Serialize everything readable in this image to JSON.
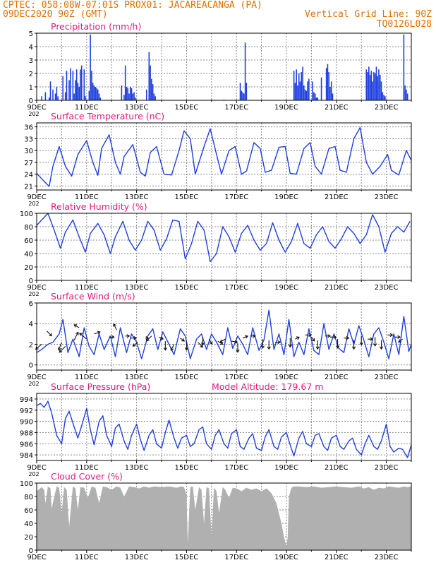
{
  "header": {
    "line1_left": "CPTEC:   058:08W-07:01S   PROX01: JACAREACANGA (PA)",
    "line2_left": "09DEC2020 90Z (GMT)",
    "line2_right": "Vertical Grid Line: 90Z",
    "line3_right": "TQ0126L028"
  },
  "colors": {
    "header": "#e07000",
    "title": "#e0197d",
    "series": "#1f3fe0",
    "cloud": "#b0b0b0",
    "grid": "#8a8a8a"
  },
  "x_axis": {
    "labels": [
      "9DEC",
      "11DEC",
      "13DEC",
      "15DEC",
      "17DEC",
      "19DEC",
      "21DEC",
      "23DEC"
    ],
    "label_days": [
      0,
      2,
      4,
      6,
      8,
      10,
      12,
      14
    ],
    "total_days": 15,
    "year_fragment": "202"
  },
  "chart_data": [
    {
      "type": "bar",
      "title": "Precipitation  (mm/h)",
      "ylim": [
        0,
        5
      ],
      "yticks": [
        0,
        1,
        2,
        3,
        4,
        5
      ],
      "x_days": [
        0.2,
        0.35,
        0.5,
        0.55,
        0.65,
        0.75,
        0.8,
        0.85,
        1.05,
        1.15,
        1.2,
        1.3,
        1.35,
        1.45,
        1.5,
        1.55,
        1.6,
        1.65,
        1.7,
        1.75,
        1.8,
        1.9,
        1.95,
        2.1,
        2.15,
        2.2,
        2.25,
        2.3,
        2.35,
        2.4,
        2.45,
        2.5,
        2.55,
        3.4,
        3.5,
        3.55,
        3.6,
        3.65,
        3.7,
        3.75,
        3.8,
        3.85,
        3.9,
        3.95,
        4.4,
        4.5,
        4.55,
        4.6,
        4.65,
        4.7,
        4.75,
        7.0,
        7.5,
        8.15,
        8.2,
        8.25,
        8.3,
        8.35,
        8.4,
        10.3,
        10.35,
        10.4,
        10.45,
        10.5,
        10.55,
        10.6,
        10.65,
        10.7,
        10.75,
        10.8,
        10.85,
        10.9,
        11.05,
        11.1,
        11.15,
        11.2,
        11.25,
        11.4,
        11.6,
        11.65,
        11.7,
        11.75,
        11.8,
        11.85,
        13.2,
        13.25,
        13.3,
        13.35,
        13.4,
        13.45,
        13.5,
        13.55,
        13.6,
        13.65,
        13.7,
        13.75,
        13.8,
        13.85,
        13.9,
        13.95,
        14.7,
        14.75,
        14.8,
        14.85
      ],
      "values": [
        0.3,
        0.6,
        0.2,
        1.4,
        0.8,
        0.5,
        1.0,
        0.3,
        1.8,
        0.6,
        2.2,
        1.5,
        2.4,
        2.2,
        0.5,
        1.5,
        2.3,
        1.3,
        1.0,
        2.3,
        2.6,
        2.3,
        0.3,
        0.7,
        4.9,
        2.2,
        1.3,
        1.1,
        1.0,
        0.9,
        0.8,
        0.5,
        0.2,
        1.1,
        0.4,
        2.6,
        1.0,
        0.9,
        0.5,
        1.0,
        0.9,
        0.5,
        0.6,
        0.2,
        0.8,
        3.6,
        2.6,
        1.6,
        1.2,
        0.5,
        0.3,
        0.05,
        0.05,
        1.3,
        0.7,
        0.6,
        0.5,
        4.3,
        1.3,
        2.2,
        1.3,
        2.3,
        1.1,
        2.0,
        1.4,
        2.1,
        2.5,
        1.1,
        0.8,
        0.7,
        1.4,
        1.6,
        1.4,
        0.6,
        0.5,
        0.2,
        0.2,
        1.7,
        2.4,
        2.7,
        2.1,
        1.0,
        1.4,
        0.5,
        2.3,
        2.1,
        2.5,
        1.9,
        2.2,
        1.4,
        2.1,
        2.0,
        2.5,
        1.8,
        2.3,
        1.9,
        1.4,
        0.6,
        0.4,
        0.3,
        4.9,
        1.1,
        0.8,
        0.5
      ]
    },
    {
      "type": "line",
      "title": "Surface Temperature  (nC)",
      "ylim": [
        20,
        37
      ],
      "yticks": [
        21,
        24,
        27,
        30,
        33,
        36
      ],
      "x_days": [
        0,
        0.25,
        0.5,
        0.65,
        0.9,
        1.15,
        1.4,
        1.65,
        2.0,
        2.25,
        2.45,
        2.6,
        2.9,
        3.15,
        3.35,
        3.5,
        3.85,
        4.15,
        4.35,
        4.55,
        4.8,
        5.1,
        5.4,
        5.7,
        5.9,
        6.15,
        6.35,
        6.7,
        6.95,
        7.2,
        7.4,
        7.7,
        7.95,
        8.2,
        8.4,
        8.7,
        8.95,
        9.15,
        9.4,
        9.7,
        9.95,
        10.15,
        10.4,
        10.7,
        10.95,
        11.15,
        11.4,
        11.7,
        11.95,
        12.15,
        12.4,
        12.7,
        12.95,
        13.2,
        13.45,
        13.75,
        14.05,
        14.2,
        14.5,
        14.8,
        15.0
      ],
      "values": [
        24.2,
        22.5,
        20.9,
        26.0,
        31.0,
        26.0,
        23.5,
        29.0,
        32.5,
        27.0,
        23.7,
        30.5,
        34.0,
        27.0,
        24.0,
        28.5,
        31.5,
        24.5,
        23.5,
        29.5,
        31.0,
        24.0,
        23.8,
        30.0,
        35.0,
        33.0,
        24.0,
        31.0,
        35.5,
        29.0,
        24.0,
        30.0,
        31.0,
        24.0,
        24.8,
        32.0,
        30.5,
        24.5,
        25.0,
        30.8,
        31.0,
        24.2,
        24.0,
        30.5,
        32.0,
        26.0,
        24.0,
        30.5,
        31.0,
        25.0,
        24.5,
        33.0,
        35.8,
        27.0,
        24.0,
        26.0,
        29.0,
        25.0,
        23.8,
        30.0,
        27.5
      ]
    },
    {
      "type": "line",
      "title": "Relative Humidity  (%)",
      "ylim": [
        0,
        100
      ],
      "yticks": [
        0,
        20,
        40,
        60,
        80,
        100
      ],
      "x_days": [
        0,
        0.2,
        0.45,
        0.7,
        0.95,
        1.15,
        1.45,
        1.7,
        1.95,
        2.15,
        2.45,
        2.7,
        2.95,
        3.15,
        3.45,
        3.7,
        3.95,
        4.2,
        4.45,
        4.7,
        4.95,
        5.2,
        5.45,
        5.7,
        5.95,
        6.2,
        6.45,
        6.7,
        6.95,
        7.2,
        7.45,
        7.7,
        7.95,
        8.2,
        8.45,
        8.7,
        8.95,
        9.2,
        9.45,
        9.7,
        9.95,
        10.2,
        10.45,
        10.7,
        10.95,
        11.2,
        11.45,
        11.7,
        11.95,
        12.2,
        12.45,
        12.7,
        12.95,
        13.2,
        13.45,
        13.7,
        13.95,
        14.2,
        14.45,
        14.7,
        14.95
      ],
      "values": [
        82,
        90,
        100,
        75,
        48,
        72,
        90,
        65,
        42,
        70,
        85,
        68,
        40,
        65,
        88,
        60,
        45,
        60,
        88,
        75,
        45,
        62,
        90,
        88,
        32,
        55,
        88,
        75,
        28,
        40,
        80,
        65,
        42,
        70,
        82,
        60,
        45,
        55,
        86,
        60,
        42,
        58,
        85,
        55,
        48,
        68,
        80,
        58,
        48,
        62,
        80,
        70,
        55,
        68,
        98,
        80,
        42,
        70,
        80,
        72,
        88
      ]
    },
    {
      "type": "line",
      "title": "Surface Wind  (m/s)",
      "ylim": [
        -0.5,
        6
      ],
      "yticks": [
        0,
        2,
        4,
        6
      ],
      "x_days": [
        0,
        0.2,
        0.45,
        0.65,
        0.9,
        1.05,
        1.25,
        1.45,
        1.7,
        1.9,
        2.1,
        2.3,
        2.5,
        2.7,
        2.95,
        3.15,
        3.35,
        3.6,
        3.8,
        4.0,
        4.2,
        4.45,
        4.65,
        4.85,
        5.05,
        5.3,
        5.5,
        5.75,
        5.95,
        6.15,
        6.4,
        6.6,
        6.8,
        7.0,
        7.2,
        7.45,
        7.65,
        7.85,
        8.05,
        8.25,
        8.45,
        8.65,
        8.9,
        9.1,
        9.3,
        9.5,
        9.7,
        9.9,
        10.1,
        10.3,
        10.5,
        10.7,
        10.9,
        11.1,
        11.3,
        11.5,
        11.7,
        11.9,
        12.1,
        12.3,
        12.5,
        12.7,
        12.9,
        13.1,
        13.3,
        13.5,
        13.7,
        13.9,
        14.1,
        14.3,
        14.5,
        14.7,
        14.9,
        15.0
      ],
      "values": [
        1.2,
        1.5,
        2.0,
        2.2,
        3.0,
        4.4,
        1.2,
        2.5,
        0.8,
        3.6,
        1.8,
        1.0,
        3.0,
        1.5,
        2.8,
        0.8,
        3.6,
        1.2,
        3.0,
        2.2,
        0.6,
        2.8,
        3.5,
        1.5,
        3.2,
        2.0,
        1.0,
        3.5,
        2.8,
        0.6,
        2.5,
        3.0,
        1.5,
        3.0,
        2.2,
        1.0,
        3.6,
        1.6,
        2.8,
        2.0,
        1.0,
        3.6,
        1.4,
        2.4,
        5.3,
        1.5,
        3.0,
        1.0,
        4.4,
        0.8,
        2.2,
        1.0,
        3.5,
        1.4,
        1.0,
        4.0,
        1.5,
        3.0,
        1.6,
        1.2,
        3.5,
        2.0,
        3.8,
        2.4,
        0.8,
        3.0,
        3.6,
        2.2,
        0.6,
        3.0,
        1.0,
        4.7,
        1.3,
        2.0
      ]
    },
    {
      "type": "line",
      "title": "Surface Pressure  (hPa)",
      "annotation": "Model Altitude: 179.67  m",
      "ylim": [
        983,
        995
      ],
      "yticks": [
        984,
        986,
        988,
        990,
        992,
        994
      ],
      "x_days": [
        0,
        0.15,
        0.3,
        0.45,
        0.6,
        0.8,
        1.0,
        1.15,
        1.3,
        1.5,
        1.65,
        1.8,
        2.0,
        2.15,
        2.3,
        2.5,
        2.65,
        2.8,
        3.0,
        3.15,
        3.3,
        3.5,
        3.65,
        3.8,
        4.0,
        4.15,
        4.3,
        4.5,
        4.65,
        4.8,
        5.0,
        5.15,
        5.3,
        5.5,
        5.65,
        5.8,
        6.0,
        6.15,
        6.3,
        6.5,
        6.65,
        6.8,
        7.0,
        7.15,
        7.3,
        7.5,
        7.65,
        7.8,
        8.0,
        8.15,
        8.3,
        8.5,
        8.65,
        8.8,
        9.0,
        9.15,
        9.3,
        9.5,
        9.65,
        9.8,
        10.0,
        10.15,
        10.3,
        10.5,
        10.65,
        10.8,
        11.0,
        11.15,
        11.3,
        11.5,
        11.65,
        11.8,
        12.0,
        12.15,
        12.3,
        12.5,
        12.65,
        12.8,
        13.0,
        13.15,
        13.3,
        13.5,
        13.65,
        13.8,
        14.0,
        14.15,
        14.3,
        14.5,
        14.65,
        14.85,
        15.0
      ],
      "values": [
        992.8,
        993.2,
        992.5,
        993.6,
        991.5,
        987.5,
        986.0,
        990.5,
        991.8,
        989.0,
        987.0,
        989.2,
        992.3,
        988.5,
        985.8,
        990.0,
        991.0,
        987.5,
        985.5,
        988.8,
        989.5,
        986.5,
        985.0,
        987.5,
        989.5,
        986.8,
        984.8,
        987.5,
        988.5,
        986.0,
        985.2,
        988.0,
        990.2,
        987.0,
        985.2,
        987.0,
        987.5,
        985.5,
        986.0,
        988.5,
        989.0,
        986.0,
        985.0,
        987.5,
        988.5,
        986.0,
        985.2,
        987.8,
        988.5,
        985.5,
        985.0,
        987.0,
        987.8,
        985.2,
        984.8,
        987.2,
        988.5,
        985.5,
        985.0,
        987.2,
        988.0,
        985.8,
        983.8,
        987.0,
        988.2,
        986.0,
        985.5,
        987.5,
        987.8,
        985.5,
        984.8,
        987.0,
        987.5,
        985.5,
        985.0,
        986.5,
        987.0,
        985.0,
        984.0,
        986.0,
        987.5,
        985.5,
        985.0,
        986.5,
        989.5,
        985.5,
        984.5,
        985.2,
        985.0,
        983.5,
        985.8
      ]
    },
    {
      "type": "area",
      "title": "Cloud Cover  (%)",
      "ylim": [
        0,
        100
      ],
      "yticks": [
        0,
        20,
        40,
        60,
        80,
        100
      ],
      "x_days": [
        0,
        0.2,
        0.3,
        0.35,
        0.45,
        0.55,
        0.6,
        0.8,
        0.9,
        1.0,
        1.1,
        1.2,
        1.3,
        1.45,
        1.55,
        1.65,
        1.75,
        1.9,
        2.05,
        2.2,
        2.35,
        2.5,
        2.65,
        2.8,
        3.0,
        3.2,
        3.35,
        3.5,
        3.7,
        3.9,
        4.1,
        4.3,
        4.5,
        4.7,
        5.0,
        5.3,
        5.6,
        5.8,
        5.9,
        6.0,
        6.05,
        6.15,
        6.25,
        6.35,
        6.5,
        6.6,
        6.7,
        6.8,
        6.9,
        7.0,
        7.1,
        7.2,
        7.3,
        7.45,
        7.55,
        7.7,
        7.85,
        8.0,
        8.2,
        8.4,
        8.6,
        8.8,
        9.0,
        9.2,
        9.4,
        9.6,
        9.8,
        9.9,
        10.0,
        10.05,
        10.1,
        10.2,
        10.3,
        10.5,
        10.8,
        11.1,
        11.4,
        11.7,
        12.0,
        12.3,
        12.6,
        12.9,
        13.1,
        13.3,
        13.5,
        13.7,
        13.9,
        14.1,
        14.3,
        14.5,
        14.7,
        14.85,
        15.0
      ],
      "values": [
        88,
        94,
        90,
        70,
        95,
        92,
        62,
        95,
        93,
        55,
        94,
        90,
        35,
        95,
        92,
        60,
        94,
        93,
        78,
        95,
        93,
        70,
        95,
        94,
        90,
        95,
        93,
        80,
        95,
        94,
        92,
        95,
        93,
        95,
        94,
        95,
        93,
        95,
        94,
        82,
        10,
        94,
        95,
        60,
        94,
        90,
        40,
        94,
        92,
        20,
        93,
        88,
        55,
        94,
        90,
        78,
        93,
        92,
        88,
        93,
        90,
        92,
        88,
        92,
        85,
        70,
        40,
        20,
        5,
        20,
        80,
        93,
        95,
        95,
        94,
        95,
        93,
        94,
        95,
        94,
        93,
        95,
        92,
        94,
        90,
        93,
        92,
        95,
        94,
        93,
        95,
        94,
        95
      ]
    }
  ],
  "wind_vectors": {
    "x_days": [
      0.2,
      0.4,
      1.0,
      1.15,
      1.5,
      1.7,
      2.0,
      2.3,
      2.9,
      3.2,
      3.55,
      3.75,
      4.05,
      4.35,
      4.6,
      4.9,
      5.15,
      5.5,
      5.75,
      6.0,
      6.45,
      6.65,
      6.9,
      7.25,
      7.55,
      7.8,
      8.05,
      8.25,
      8.55,
      9.05,
      9.3,
      9.55,
      10.15,
      10.35,
      10.75,
      11.0,
      11.25,
      11.55,
      11.75,
      12.05,
      12.3,
      12.7,
      13.0,
      13.25,
      13.55,
      13.8,
      14.05,
      14.35,
      14.65
    ],
    "y": [
      2.0,
      3.3,
      2.2,
      1.8,
      2.4,
      3.6,
      2.5,
      3.0,
      2.7,
      3.4,
      2.8,
      2.6,
      2.2,
      2.6,
      2.8,
      2.7,
      2.3,
      2.0,
      2.6,
      2.3,
      2.2,
      2.7,
      2.5,
      2.3,
      2.5,
      2.3,
      2.1,
      2.6,
      2.8,
      2.5,
      2.4,
      2.2,
      2.6,
      2.5,
      2.9,
      2.7,
      2.4,
      2.8,
      2.7,
      2.5,
      2.6,
      2.4,
      2.8,
      2.5,
      2.7,
      2.4,
      2.9,
      2.7,
      2.5
    ],
    "u": [
      -0.6,
      0.5,
      -0.3,
      -0.6,
      0.4,
      -0.5,
      -0.7,
      0.6,
      0.5,
      -0.3,
      0.4,
      0.6,
      -0.5,
      0.3,
      -0.5,
      0.4,
      0.0,
      -0.3,
      0.4,
      0.0,
      0.5,
      0.0,
      0.3,
      0.5,
      -0.5,
      0.6,
      0.0,
      0.5,
      0.5,
      0.0,
      0.0,
      0.5,
      0.0,
      0.4,
      0.6,
      0.3,
      0.0,
      0.5,
      0.6,
      0.0,
      0.5,
      0.0,
      0.0,
      0.5,
      0.0,
      0.0,
      0.5,
      0.5,
      -0.4
    ],
    "v": [
      -0.5,
      -0.5,
      -0.8,
      -0.6,
      0.8,
      0.3,
      0.6,
      0.2,
      0.0,
      0.6,
      0.0,
      0.0,
      -0.4,
      0.0,
      -0.5,
      -0.2,
      -0.9,
      -0.6,
      -0.3,
      -0.9,
      -0.5,
      -0.8,
      -0.5,
      -0.3,
      -0.3,
      -0.1,
      -0.9,
      0.2,
      0.0,
      -0.9,
      -0.9,
      0.0,
      -0.9,
      0.2,
      0.0,
      -0.4,
      -0.9,
      0.0,
      0.0,
      -0.9,
      0.0,
      -0.9,
      -0.9,
      0.0,
      -0.9,
      -0.9,
      0.0,
      0.0,
      -0.3
    ]
  }
}
